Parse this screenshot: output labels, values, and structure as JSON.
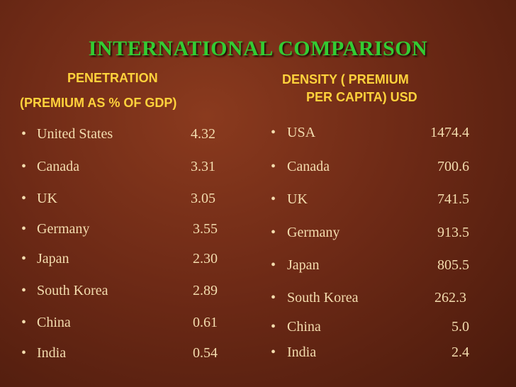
{
  "title": "INTERNATIONAL COMPARISON",
  "left": {
    "header": [
      "PENETRATION",
      "(PREMIUM AS % OF GDP)"
    ],
    "rows": [
      [
        "United States",
        "4.32"
      ],
      [
        "Canada",
        "3.31"
      ],
      [
        "UK",
        "3.05"
      ],
      [
        "Germany",
        "3.55"
      ],
      [
        "Japan",
        "2.30"
      ],
      [
        "South Korea",
        "2.89"
      ],
      [
        "China",
        "0.61"
      ],
      [
        "India",
        "0.54"
      ]
    ]
  },
  "right": {
    "header": [
      "DENSITY ( PREMIUM",
      "PER CAPITA) USD"
    ],
    "rows": [
      [
        "USA",
        "1474.4"
      ],
      [
        "Canada",
        "700.6"
      ],
      [
        "UK",
        "741.5"
      ],
      [
        "Germany",
        "913.5"
      ],
      [
        "Japan",
        "805.5"
      ],
      [
        "South Korea",
        "262.3"
      ],
      [
        "China",
        "5.0"
      ],
      [
        "India",
        "2.4"
      ]
    ]
  }
}
